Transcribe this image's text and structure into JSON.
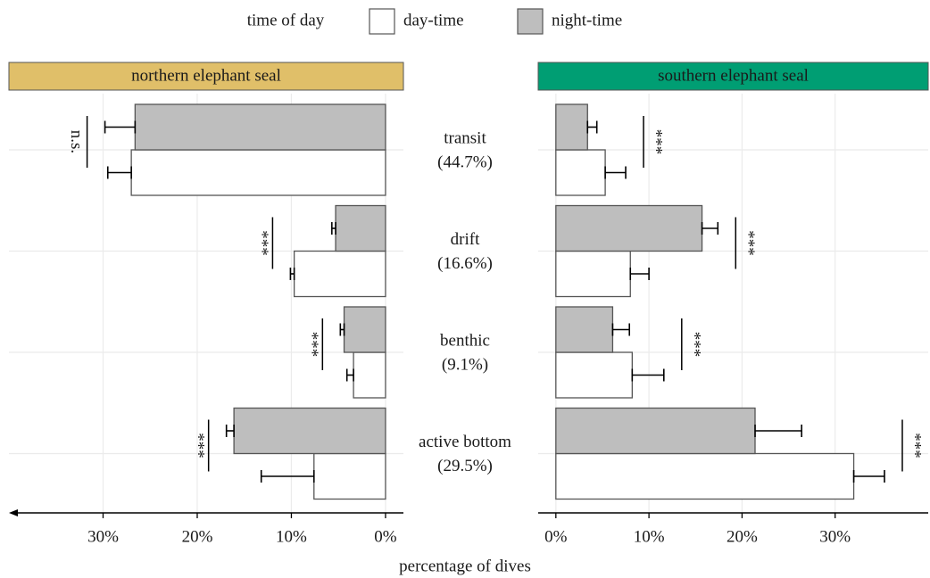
{
  "chart_data": {
    "type": "bar",
    "orientation": "horizontal",
    "legend_title": "time of day",
    "x_label": "percentage of dives",
    "grid": true,
    "series": [
      {
        "name": "day-time",
        "color": "#ffffff"
      },
      {
        "name": "night-time",
        "color": "#bebebe"
      }
    ],
    "categories": [
      "transit",
      "drift",
      "benthic",
      "active bottom"
    ],
    "category_shares": [
      {
        "value": 44.7,
        "label": "(44.7%)"
      },
      {
        "value": 16.6,
        "label": "(16.6%)"
      },
      {
        "value": 9.1,
        "label": "(9.1%)"
      },
      {
        "value": 29.5,
        "label": "(29.5%)"
      }
    ],
    "panels": [
      {
        "title": "northern elephant seal",
        "strip_color": "#e0bf69",
        "reversed": true,
        "xlim": [
          -1.9,
          40
        ],
        "xticks": [
          {
            "value": 0,
            "label": "0%"
          },
          {
            "value": 10,
            "label": "10%"
          },
          {
            "value": 20,
            "label": "20%"
          },
          {
            "value": 30,
            "label": "30%"
          }
        ],
        "series": [
          {
            "values": [
              27.0,
              9.7,
              3.4,
              7.6
            ],
            "errors": [
              2.5,
              0.4,
              0.7,
              5.6
            ]
          },
          {
            "values": [
              26.6,
              5.3,
              4.4,
              16.1
            ],
            "errors": [
              3.2,
              0.4,
              0.4,
              0.8
            ]
          }
        ],
        "significance": [
          "n.s.",
          "***",
          "***",
          "***"
        ]
      },
      {
        "title": "southern elephant seal",
        "strip_color": "#009e73",
        "reversed": false,
        "xlim": [
          -1.9,
          40
        ],
        "xticks": [
          {
            "value": 0,
            "label": "0%"
          },
          {
            "value": 10,
            "label": "10%"
          },
          {
            "value": 20,
            "label": "20%"
          },
          {
            "value": 30,
            "label": "30%"
          }
        ],
        "series": [
          {
            "values": [
              5.3,
              8.0,
              8.2,
              32.0
            ],
            "errors": [
              2.2,
              2.0,
              3.4,
              3.3
            ]
          },
          {
            "values": [
              3.4,
              15.7,
              6.1,
              21.4
            ],
            "errors": [
              1.0,
              1.7,
              1.8,
              5.0
            ]
          }
        ],
        "significance": [
          "***",
          "***",
          "***",
          "***"
        ]
      }
    ]
  }
}
